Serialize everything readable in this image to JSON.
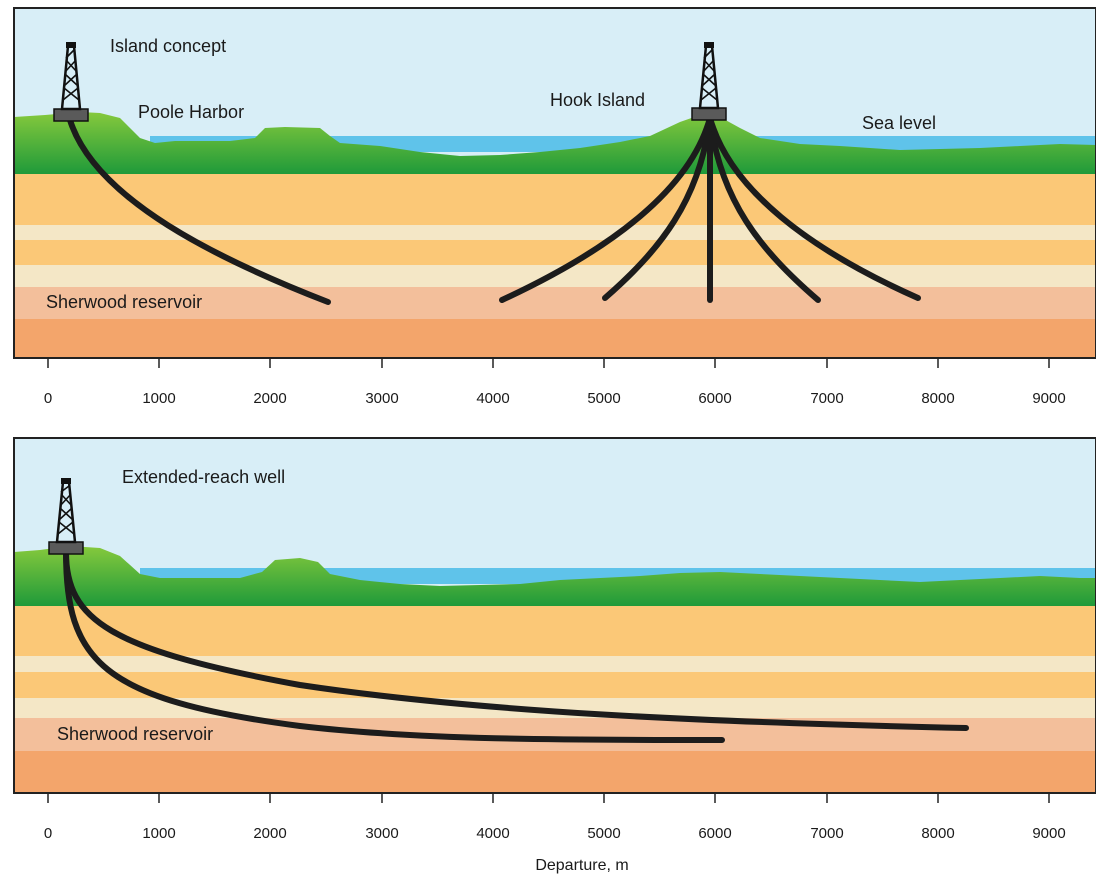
{
  "colors": {
    "sky": "#d8eef7",
    "water": "#5fc3ea",
    "land_top": "#7ec23a",
    "land_bottom": "#1f9a3a",
    "layer_orange": "#fbc877",
    "layer_cream": "#f4e7c6",
    "layer_reservoir": "#f3bf9b",
    "layer_deep": "#f3a56b",
    "well": "#1c1c1c",
    "rig_base": "#5a5a5a"
  },
  "top_panel": {
    "labels": {
      "concept": "Island concept",
      "harbor": "Poole Harbor",
      "island": "Hook Island",
      "sea": "Sea level",
      "reservoir": "Sherwood reservoir"
    },
    "rigs": [
      {
        "name": "left-rig",
        "departure_m": 200
      },
      {
        "name": "hook-island-rig",
        "departure_m": 5950
      }
    ],
    "wells": [
      {
        "from_m": 200,
        "to_m": 2550
      },
      {
        "from_m": 5950,
        "to_m": 4050
      },
      {
        "from_m": 5950,
        "to_m": 5000
      },
      {
        "from_m": 5950,
        "to_m": 5950
      },
      {
        "from_m": 5950,
        "to_m": 6900
      },
      {
        "from_m": 5950,
        "to_m": 7800
      }
    ]
  },
  "bottom_panel": {
    "labels": {
      "concept": "Extended-reach well",
      "reservoir": "Sherwood reservoir"
    },
    "rigs": [
      {
        "name": "extended-reach-rig",
        "departure_m": 150
      }
    ],
    "wells": [
      {
        "from_m": 150,
        "to_m": 6050
      },
      {
        "from_m": 150,
        "to_m": 8250
      }
    ]
  },
  "axis": {
    "title": "Departure, m",
    "ticks": [
      "0",
      "1000",
      "2000",
      "3000",
      "4000",
      "5000",
      "6000",
      "7000",
      "8000",
      "9000"
    ]
  }
}
